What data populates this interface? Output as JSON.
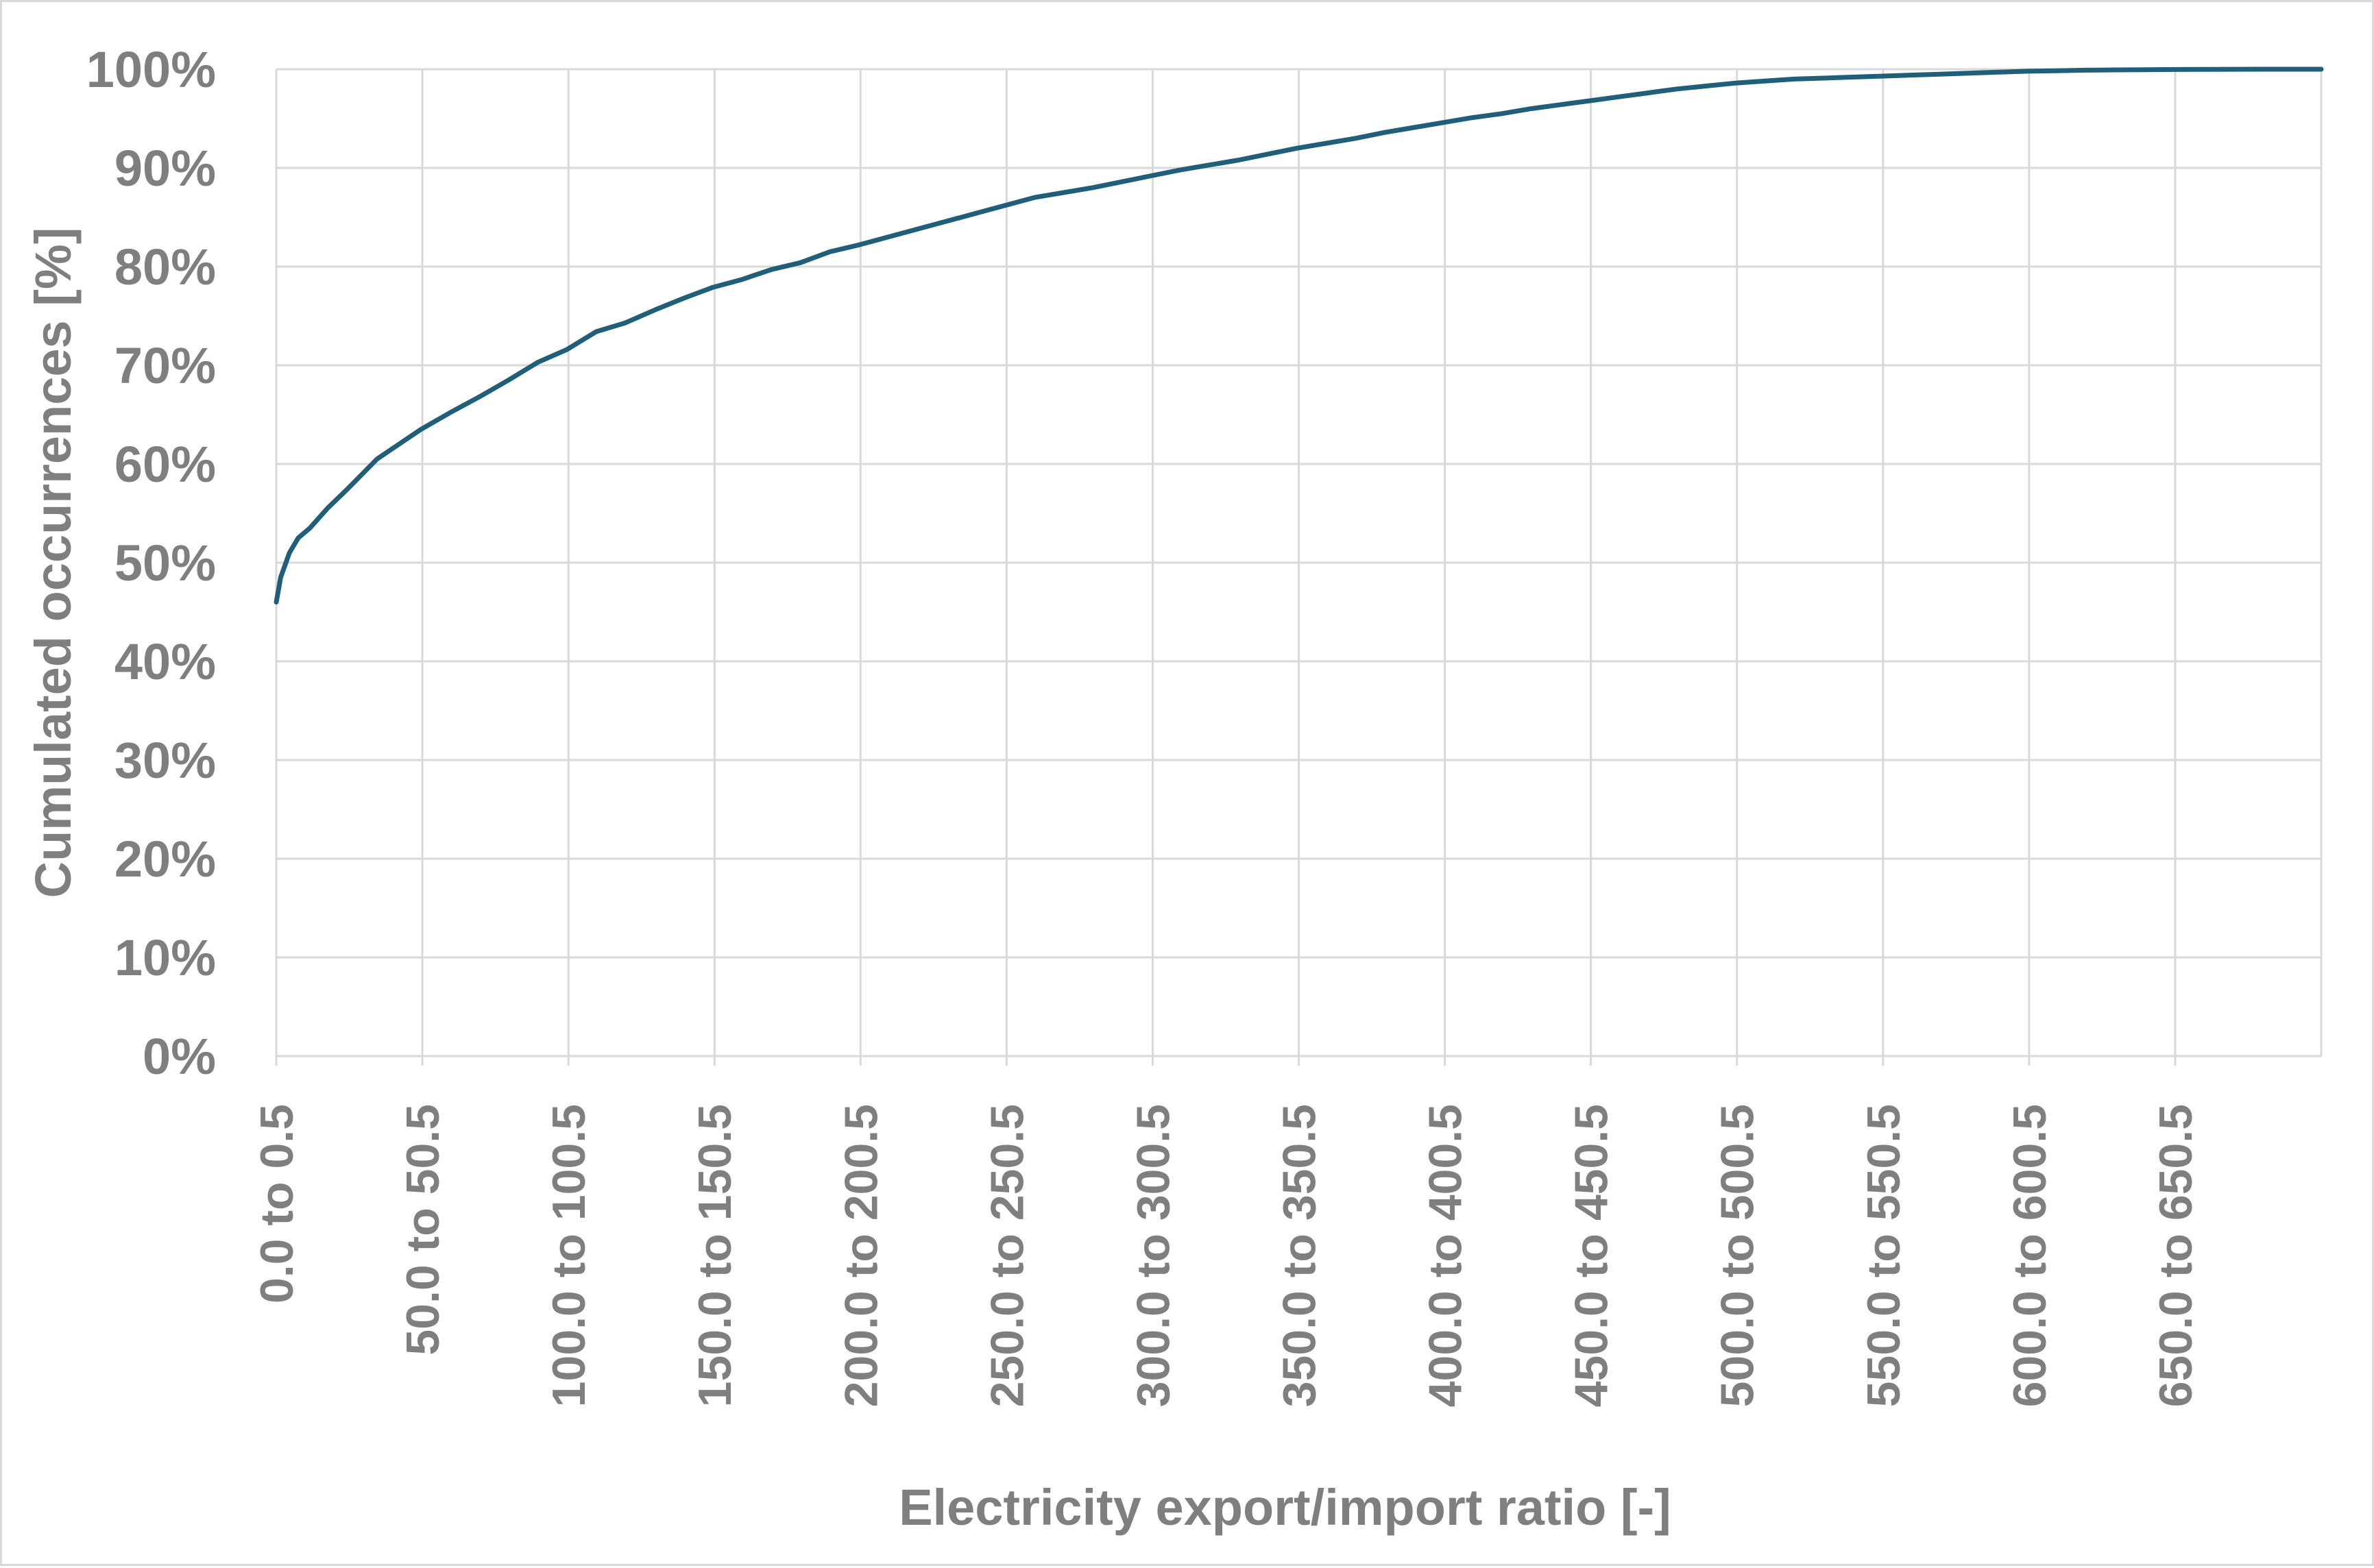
{
  "chart_data": {
    "type": "line",
    "title": "",
    "xlabel": "Electricity export/import ratio [-]",
    "ylabel": "Cumulated occurrences [%]",
    "x_categories": [
      "0.0 to 0.5",
      "50.0 to 50.5",
      "100.0 to 100.5",
      "150.0 to 150.5",
      "200.0 to 200.5",
      "250.0 to 250.5",
      "300.0 to 300.5",
      "350.0 to 350.5",
      "400.0 to 400.5",
      "450.0 to 450.5",
      "500.0 to 500.5",
      "550.0 to 550.5",
      "600.0 to 600.5",
      "650.0 to 650.5"
    ],
    "x_tick_positions": [
      0.5,
      50.5,
      100.5,
      150.5,
      200.5,
      250.5,
      300.5,
      350.5,
      400.5,
      450.5,
      500.5,
      550.5,
      600.5,
      650.5
    ],
    "y_tick_labels": [
      "0%",
      "10%",
      "20%",
      "30%",
      "40%",
      "50%",
      "60%",
      "70%",
      "80%",
      "90%",
      "100%"
    ],
    "xlim": [
      0.5,
      700.5
    ],
    "ylim": [
      0,
      100
    ],
    "grid": true,
    "legend": "none",
    "line_color": "#1f5f7a",
    "grid_color": "#d9d9d9",
    "text_color": "#7f7f7f",
    "series": [
      {
        "x": [
          0.5,
          2,
          5,
          8,
          12,
          18,
          25,
          30,
          35,
          40,
          45,
          50,
          60,
          70,
          80,
          90,
          100,
          110,
          120,
          130,
          140,
          150,
          160,
          170,
          180,
          190,
          200,
          210,
          220,
          230,
          240,
          250,
          260,
          270,
          280,
          290,
          300,
          310,
          320,
          330,
          340,
          350,
          360,
          370,
          380,
          390,
          400,
          410,
          420,
          430,
          440,
          450,
          460,
          470,
          480,
          490,
          500,
          510,
          520,
          530,
          540,
          550,
          560,
          570,
          580,
          590,
          600,
          610,
          620,
          630,
          640,
          650,
          660,
          670,
          680,
          690,
          700.5
        ],
        "y": [
          46,
          48.5,
          51,
          52.5,
          53.5,
          55.5,
          57.5,
          59,
          60.5,
          61.5,
          62.5,
          63.5,
          65.2,
          66.8,
          68.5,
          70.3,
          71.6,
          73.4,
          74.3,
          75.6,
          76.8,
          77.9,
          78.7,
          79.7,
          80.4,
          81.5,
          82.2,
          83.0,
          83.8,
          84.6,
          85.4,
          86.2,
          87.0,
          87.5,
          88.0,
          88.6,
          89.2,
          89.8,
          90.3,
          90.8,
          91.4,
          92.0,
          92.5,
          93.0,
          93.6,
          94.1,
          94.6,
          95.1,
          95.5,
          96.0,
          96.4,
          96.8,
          97.2,
          97.6,
          98.0,
          98.3,
          98.6,
          98.8,
          99.0,
          99.1,
          99.2,
          99.3,
          99.4,
          99.5,
          99.6,
          99.7,
          99.8,
          99.85,
          99.9,
          99.93,
          99.95,
          99.97,
          99.98,
          99.99,
          100,
          100,
          100
        ]
      }
    ]
  }
}
